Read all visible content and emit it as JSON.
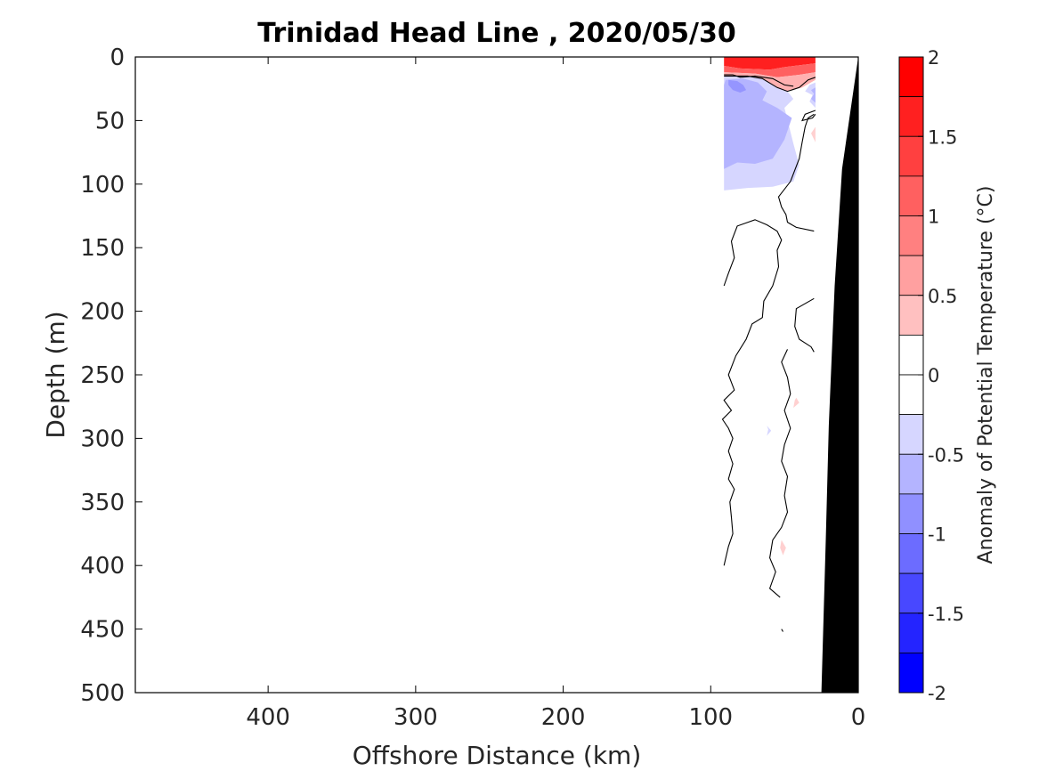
{
  "chart_data": {
    "type": "heatmap",
    "subtype": "filled contour section",
    "title": "Trinidad Head Line , 2020/05/30",
    "xlabel": "Offshore Distance (km)",
    "ylabel": "Depth (m)",
    "xlim": [
      0,
      490
    ],
    "x_reversed": true,
    "ylim": [
      0,
      500
    ],
    "y_reversed": true,
    "xticks": [
      400,
      300,
      200,
      100,
      0
    ],
    "yticks": [
      0,
      50,
      100,
      150,
      200,
      250,
      300,
      350,
      400,
      450,
      500
    ],
    "grid": false,
    "colorbar": {
      "label": "Anomaly of Potential Temperature (°C)",
      "limits": [
        -2,
        2
      ],
      "ticks": [
        2,
        1.5,
        1,
        0.5,
        0,
        -0.5,
        -1,
        -1.5,
        -2
      ],
      "tick_labels": [
        "2",
        "1.5",
        "1",
        "0.5",
        "0",
        "-0.5",
        "-1",
        "-1.5",
        "-2"
      ],
      "levels": [
        {
          "range": [
            1.75,
            2.0
          ],
          "color": "#ff0000"
        },
        {
          "range": [
            1.5,
            1.75
          ],
          "color": "#ff2020"
        },
        {
          "range": [
            1.25,
            1.5
          ],
          "color": "#ff4040"
        },
        {
          "range": [
            1.0,
            1.25
          ],
          "color": "#ff6060"
        },
        {
          "range": [
            0.75,
            1.0
          ],
          "color": "#ff8080"
        },
        {
          "range": [
            0.5,
            0.75
          ],
          "color": "#ffa0a0"
        },
        {
          "range": [
            0.25,
            0.5
          ],
          "color": "#ffc0c0"
        },
        {
          "range": [
            0.0,
            0.25
          ],
          "color": "#ffffff"
        },
        {
          "range": [
            -0.25,
            0.0
          ],
          "color": "#ffffff"
        },
        {
          "range": [
            -0.5,
            -0.25
          ],
          "color": "#d6d6ff"
        },
        {
          "range": [
            -0.75,
            -0.5
          ],
          "color": "#b4b4ff"
        },
        {
          "range": [
            -1.0,
            -0.75
          ],
          "color": "#9090ff"
        },
        {
          "range": [
            -1.25,
            -1.0
          ],
          "color": "#6c6cff"
        },
        {
          "range": [
            -1.5,
            -1.25
          ],
          "color": "#4848ff"
        },
        {
          "range": [
            -1.75,
            -1.5
          ],
          "color": "#2424ff"
        },
        {
          "range": [
            -2.0,
            -1.75
          ],
          "color": "#0000ff"
        }
      ]
    },
    "regions": [
      {
        "name": "surface warm anomaly",
        "anomaly": 2.0,
        "color": "#ff2020",
        "points": [
          [
            91,
            0
          ],
          [
            29,
            0
          ],
          [
            29,
            5
          ],
          [
            50,
            8
          ],
          [
            60,
            10
          ],
          [
            80,
            9
          ],
          [
            91,
            7
          ]
        ]
      },
      {
        "name": "surface warm anomaly",
        "anomaly": 1.5,
        "color": "#ff6060",
        "points": [
          [
            91,
            7
          ],
          [
            80,
            9
          ],
          [
            60,
            10
          ],
          [
            50,
            8
          ],
          [
            29,
            5
          ],
          [
            29,
            12
          ],
          [
            40,
            14
          ],
          [
            55,
            16
          ],
          [
            70,
            13
          ],
          [
            91,
            12
          ]
        ]
      },
      {
        "name": "surface warm anomaly",
        "anomaly": 0.75,
        "color": "#ffb0b0",
        "points": [
          [
            91,
            12
          ],
          [
            70,
            13
          ],
          [
            55,
            16
          ],
          [
            40,
            14
          ],
          [
            29,
            12
          ],
          [
            29,
            18
          ],
          [
            38,
            24
          ],
          [
            48,
            27
          ],
          [
            55,
            24
          ],
          [
            65,
            17
          ],
          [
            75,
            15
          ],
          [
            91,
            15
          ]
        ]
      },
      {
        "name": "subsurface cold anomaly",
        "anomaly": -0.4,
        "color": "#d6d6ff",
        "points": [
          [
            91,
            15
          ],
          [
            75,
            15
          ],
          [
            65,
            17
          ],
          [
            55,
            24
          ],
          [
            48,
            27
          ],
          [
            44,
            33
          ],
          [
            50,
            40
          ],
          [
            44,
            68
          ],
          [
            40,
            85
          ],
          [
            44,
            98
          ],
          [
            58,
            102
          ],
          [
            75,
            103
          ],
          [
            91,
            105
          ]
        ]
      },
      {
        "name": "subsurface cold anomaly",
        "anomaly": -0.7,
        "color": "#b4b4ff",
        "points": [
          [
            90,
            18
          ],
          [
            78,
            17
          ],
          [
            68,
            20
          ],
          [
            62,
            27
          ],
          [
            65,
            34
          ],
          [
            55,
            40
          ],
          [
            45,
            48
          ],
          [
            50,
            65
          ],
          [
            58,
            80
          ],
          [
            70,
            84
          ],
          [
            82,
            83
          ],
          [
            91,
            88
          ],
          [
            91,
            22
          ]
        ]
      },
      {
        "name": "subsurface cold anomaly",
        "anomaly": -1.0,
        "color": "#9595ff",
        "points": [
          [
            88,
            18
          ],
          [
            82,
            19
          ],
          [
            78,
            22
          ],
          [
            76,
            26
          ],
          [
            80,
            28
          ],
          [
            85,
            26
          ],
          [
            88,
            22
          ]
        ]
      },
      {
        "name": "nearshore cold anomaly",
        "anomaly": -0.4,
        "color": "#d6d6ff",
        "points": [
          [
            29,
            20
          ],
          [
            33,
            22
          ],
          [
            36,
            27
          ],
          [
            31,
            30
          ],
          [
            33,
            35
          ],
          [
            29,
            40
          ]
        ]
      },
      {
        "name": "nearshore cold anomaly",
        "anomaly": -0.6,
        "color": "#b4b4ff",
        "points": [
          [
            29,
            24
          ],
          [
            32,
            26
          ],
          [
            30,
            29
          ],
          [
            32,
            33
          ],
          [
            29,
            36
          ]
        ]
      },
      {
        "name": "deep warm patch",
        "anomaly": 0.3,
        "color": "#ffd0d0",
        "points": [
          [
            29,
            55
          ],
          [
            32,
            60
          ],
          [
            29,
            67
          ]
        ]
      },
      {
        "name": "deep warm patch",
        "anomaly": 0.3,
        "color": "#ffd0d0",
        "points": [
          [
            42,
            268
          ],
          [
            40,
            272
          ],
          [
            44,
            276
          ],
          [
            43,
            270
          ]
        ]
      },
      {
        "name": "deep cold patch",
        "anomaly": -0.3,
        "color": "#d6d6ff",
        "points": [
          [
            62,
            290
          ],
          [
            59,
            294
          ],
          [
            62,
            298
          ],
          [
            61,
            293
          ]
        ]
      },
      {
        "name": "deep warm patch",
        "anomaly": 0.3,
        "color": "#ffd0d0",
        "points": [
          [
            52,
            380
          ],
          [
            49,
            386
          ],
          [
            51,
            392
          ],
          [
            53,
            386
          ]
        ]
      }
    ],
    "zero_contours": [
      [
        [
          91,
          15
        ],
        [
          75,
          15
        ],
        [
          65,
          17
        ],
        [
          55,
          24
        ],
        [
          48,
          27
        ],
        [
          40,
          24
        ],
        [
          34,
          18
        ],
        [
          29,
          16
        ]
      ],
      [
        [
          91,
          14
        ],
        [
          85,
          14
        ],
        [
          80,
          16
        ],
        [
          70,
          15
        ],
        [
          58,
          17
        ],
        [
          50,
          22
        ],
        [
          44,
          23
        ]
      ],
      [
        [
          29,
          42
        ],
        [
          36,
          45
        ],
        [
          38,
          50
        ],
        [
          31,
          48
        ],
        [
          29,
          45
        ]
      ],
      [
        [
          30,
          45
        ],
        [
          34,
          48
        ],
        [
          36,
          55
        ],
        [
          38,
          67
        ],
        [
          40,
          80
        ],
        [
          46,
          98
        ],
        [
          54,
          110
        ],
        [
          52,
          118
        ],
        [
          49,
          124
        ],
        [
          48,
          130
        ],
        [
          42,
          134
        ],
        [
          30,
          137
        ]
      ],
      [
        [
          91,
          180
        ],
        [
          88,
          170
        ],
        [
          84,
          158
        ],
        [
          86,
          145
        ],
        [
          82,
          133
        ],
        [
          70,
          128
        ],
        [
          62,
          132
        ],
        [
          55,
          137
        ],
        [
          52,
          144
        ],
        [
          55,
          152
        ],
        [
          54,
          165
        ],
        [
          58,
          180
        ],
        [
          64,
          192
        ],
        [
          65,
          205
        ],
        [
          72,
          210
        ],
        [
          76,
          222
        ],
        [
          83,
          235
        ],
        [
          88,
          250
        ],
        [
          84,
          262
        ],
        [
          91,
          270
        ],
        [
          86,
          278
        ],
        [
          92,
          285
        ],
        [
          88,
          292
        ],
        [
          85,
          300
        ],
        [
          88,
          310
        ],
        [
          85,
          320
        ],
        [
          88,
          332
        ],
        [
          84,
          340
        ],
        [
          87,
          350
        ],
        [
          86,
          362
        ],
        [
          85,
          375
        ],
        [
          88,
          385
        ],
        [
          91,
          400
        ]
      ],
      [
        [
          30,
          190
        ],
        [
          42,
          198
        ],
        [
          43,
          212
        ],
        [
          40,
          222
        ],
        [
          32,
          228
        ],
        [
          30,
          232
        ]
      ],
      [
        [
          48,
          230
        ],
        [
          52,
          240
        ],
        [
          48,
          252
        ],
        [
          46,
          265
        ],
        [
          50,
          278
        ],
        [
          46,
          292
        ],
        [
          50,
          305
        ],
        [
          52,
          318
        ],
        [
          48,
          330
        ],
        [
          50,
          345
        ],
        [
          48,
          358
        ],
        [
          52,
          370
        ],
        [
          58,
          380
        ],
        [
          60,
          394
        ],
        [
          56,
          405
        ],
        [
          60,
          418
        ],
        [
          53,
          425
        ]
      ],
      [
        [
          52,
          450
        ],
        [
          51,
          452
        ]
      ]
    ],
    "bathymetry": {
      "name": "seafloor / land",
      "color": "#000000",
      "points": [
        [
          0,
          0
        ],
        [
          11,
          88
        ],
        [
          16,
          180
        ],
        [
          20,
          290
        ],
        [
          22,
          380
        ],
        [
          25,
          500
        ],
        [
          0,
          500
        ]
      ]
    }
  }
}
